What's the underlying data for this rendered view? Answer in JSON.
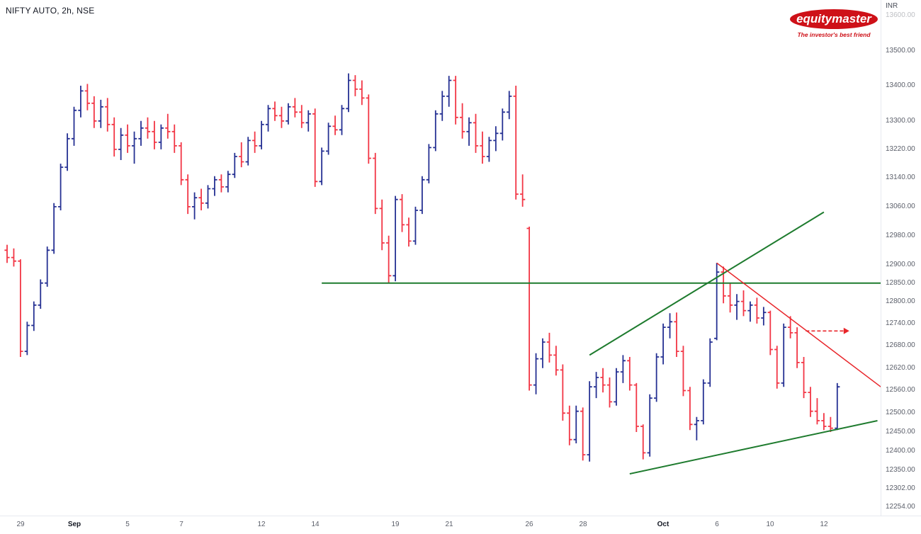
{
  "header": {
    "symbol_title": "NIFTY AUTO, 2h, NSE"
  },
  "logo": {
    "brand": "equitymaster",
    "tagline": "The investor's best friend"
  },
  "price_axis": {
    "currency": "INR"
  },
  "chart_data": {
    "type": "ohlc-bar",
    "symbol": "NIFTY AUTO",
    "interval": "2h",
    "exchange": "NSE",
    "currency": "INR",
    "grid": "off",
    "y_range": [
      12230,
      13645
    ],
    "y_axis": {
      "labels": [
        13600,
        13500,
        13400,
        13300,
        13220,
        13140,
        13060,
        12980,
        12900,
        12850,
        12800,
        12740,
        12680,
        12620,
        12560,
        12500,
        12450,
        12400,
        12350,
        12302,
        12254
      ],
      "faded": [
        13600
      ]
    },
    "x_axis": {
      "labels": [
        {
          "text": "29",
          "i": 2,
          "month": false
        },
        {
          "text": "Sep",
          "i": 10,
          "month": true
        },
        {
          "text": "5",
          "i": 18,
          "month": false
        },
        {
          "text": "7",
          "i": 26,
          "month": false
        },
        {
          "text": "12",
          "i": 38,
          "month": false
        },
        {
          "text": "14",
          "i": 46,
          "month": false
        },
        {
          "text": "19",
          "i": 58,
          "month": false
        },
        {
          "text": "21",
          "i": 66,
          "month": false
        },
        {
          "text": "26",
          "i": 78,
          "month": false
        },
        {
          "text": "28",
          "i": 86,
          "month": false
        },
        {
          "text": "Oct",
          "i": 98,
          "month": true
        },
        {
          "text": "6",
          "i": 106,
          "month": false
        },
        {
          "text": "10",
          "i": 114,
          "month": false
        },
        {
          "text": "12",
          "i": 122,
          "month": false
        }
      ]
    },
    "bars": [
      [
        12940,
        12955,
        12905,
        12920
      ],
      [
        12920,
        12945,
        12895,
        12910
      ],
      [
        12910,
        12915,
        12650,
        12665
      ],
      [
        12665,
        12745,
        12655,
        12735
      ],
      [
        12735,
        12800,
        12720,
        12790
      ],
      [
        12790,
        12860,
        12780,
        12850
      ],
      [
        12850,
        12950,
        12840,
        12940
      ],
      [
        12940,
        13070,
        12930,
        13060
      ],
      [
        13060,
        13180,
        13050,
        13170
      ],
      [
        13170,
        13265,
        13160,
        13250
      ],
      [
        13250,
        13340,
        13230,
        13330
      ],
      [
        13330,
        13400,
        13310,
        13385
      ],
      [
        13385,
        13405,
        13330,
        13350
      ],
      [
        13350,
        13370,
        13280,
        13300
      ],
      [
        13300,
        13360,
        13280,
        13340
      ],
      [
        13340,
        13365,
        13270,
        13290
      ],
      [
        13290,
        13310,
        13200,
        13220
      ],
      [
        13220,
        13280,
        13190,
        13260
      ],
      [
        13260,
        13290,
        13210,
        13230
      ],
      [
        13230,
        13270,
        13180,
        13250
      ],
      [
        13250,
        13300,
        13230,
        13280
      ],
      [
        13280,
        13310,
        13250,
        13270
      ],
      [
        13270,
        13300,
        13220,
        13240
      ],
      [
        13240,
        13290,
        13220,
        13280
      ],
      [
        13280,
        13320,
        13250,
        13270
      ],
      [
        13270,
        13290,
        13210,
        13230
      ],
      [
        13230,
        13240,
        13120,
        13135
      ],
      [
        13135,
        13150,
        13040,
        13060
      ],
      [
        13060,
        13100,
        13025,
        13085
      ],
      [
        13085,
        13110,
        13050,
        13070
      ],
      [
        13070,
        13120,
        13055,
        13110
      ],
      [
        13110,
        13145,
        13090,
        13135
      ],
      [
        13135,
        13150,
        13100,
        13115
      ],
      [
        13115,
        13160,
        13100,
        13150
      ],
      [
        13150,
        13210,
        13140,
        13200
      ],
      [
        13200,
        13240,
        13170,
        13185
      ],
      [
        13185,
        13255,
        13175,
        13245
      ],
      [
        13245,
        13270,
        13210,
        13230
      ],
      [
        13230,
        13300,
        13220,
        13290
      ],
      [
        13290,
        13345,
        13270,
        13335
      ],
      [
        13335,
        13355,
        13300,
        13315
      ],
      [
        13315,
        13340,
        13280,
        13300
      ],
      [
        13300,
        13350,
        13290,
        13340
      ],
      [
        13340,
        13365,
        13310,
        13325
      ],
      [
        13325,
        13345,
        13280,
        13295
      ],
      [
        13295,
        13330,
        13270,
        13320
      ],
      [
        13320,
        13335,
        13115,
        13130
      ],
      [
        13130,
        13225,
        13120,
        13215
      ],
      [
        13215,
        13295,
        13205,
        13285
      ],
      [
        13285,
        13315,
        13260,
        13275
      ],
      [
        13275,
        13345,
        13260,
        13335
      ],
      [
        13335,
        13435,
        13325,
        13415
      ],
      [
        13415,
        13430,
        13370,
        13390
      ],
      [
        13390,
        13415,
        13345,
        13365
      ],
      [
        13365,
        13375,
        13180,
        13195
      ],
      [
        13195,
        13210,
        13040,
        13055
      ],
      [
        13055,
        13080,
        12940,
        12960
      ],
      [
        12960,
        12980,
        12850,
        12870
      ],
      [
        12870,
        13090,
        12855,
        13080
      ],
      [
        13080,
        13095,
        12990,
        13010
      ],
      [
        13010,
        13030,
        12950,
        12965
      ],
      [
        12965,
        13060,
        12955,
        13050
      ],
      [
        13050,
        13145,
        13040,
        13135
      ],
      [
        13135,
        13235,
        13125,
        13225
      ],
      [
        13225,
        13330,
        13215,
        13320
      ],
      [
        13320,
        13385,
        13300,
        13370
      ],
      [
        13370,
        13428,
        13340,
        13415
      ],
      [
        13415,
        13428,
        13290,
        13310
      ],
      [
        13310,
        13350,
        13250,
        13270
      ],
      [
        13270,
        13310,
        13230,
        13295
      ],
      [
        13295,
        13320,
        13210,
        13230
      ],
      [
        13230,
        13270,
        13180,
        13200
      ],
      [
        13200,
        13255,
        13185,
        13245
      ],
      [
        13245,
        13285,
        13215,
        13265
      ],
      [
        13265,
        13335,
        13245,
        13325
      ],
      [
        13325,
        13385,
        13305,
        13370
      ],
      [
        13370,
        13400,
        13080,
        13095
      ],
      [
        13095,
        13150,
        13060,
        13080
      ],
      [
        13000,
        13005,
        12560,
        12575
      ],
      [
        12575,
        12660,
        12550,
        12645
      ],
      [
        12645,
        12700,
        12620,
        12690
      ],
      [
        12690,
        12715,
        12635,
        12655
      ],
      [
        12655,
        12680,
        12600,
        12615
      ],
      [
        12615,
        12630,
        12480,
        12500
      ],
      [
        12500,
        12520,
        12415,
        12430
      ],
      [
        12430,
        12520,
        12420,
        12505
      ],
      [
        12505,
        12515,
        12375,
        12390
      ],
      [
        12390,
        12585,
        12372,
        12570
      ],
      [
        12570,
        12610,
        12540,
        12595
      ],
      [
        12595,
        12620,
        12555,
        12575
      ],
      [
        12575,
        12595,
        12515,
        12530
      ],
      [
        12530,
        12620,
        12520,
        12610
      ],
      [
        12610,
        12655,
        12580,
        12640
      ],
      [
        12640,
        12650,
        12560,
        12575
      ],
      [
        12575,
        12580,
        12450,
        12465
      ],
      [
        12465,
        12470,
        12378,
        12395
      ],
      [
        12395,
        12550,
        12385,
        12540
      ],
      [
        12540,
        12660,
        12530,
        12650
      ],
      [
        12650,
        12740,
        12630,
        12730
      ],
      [
        12730,
        12768,
        12700,
        12745
      ],
      [
        12745,
        12770,
        12650,
        12665
      ],
      [
        12665,
        12680,
        12545,
        12560
      ],
      [
        12560,
        12570,
        12455,
        12470
      ],
      [
        12470,
        12490,
        12428,
        12480
      ],
      [
        12480,
        12590,
        12470,
        12580
      ],
      [
        12580,
        12700,
        12570,
        12690
      ],
      [
        12700,
        12905,
        12695,
        12880
      ],
      [
        12880,
        12895,
        12795,
        12815
      ],
      [
        12815,
        12850,
        12770,
        12790
      ],
      [
        12790,
        12820,
        12750,
        12800
      ],
      [
        12800,
        12830,
        12760,
        12775
      ],
      [
        12775,
        12800,
        12745,
        12790
      ],
      [
        12790,
        12810,
        12740,
        12755
      ],
      [
        12755,
        12785,
        12735,
        12770
      ],
      [
        12770,
        12775,
        12655,
        12670
      ],
      [
        12670,
        12680,
        12565,
        12580
      ],
      [
        12580,
        12740,
        12570,
        12730
      ],
      [
        12730,
        12760,
        12700,
        12715
      ],
      [
        12715,
        12730,
        12620,
        12635
      ],
      [
        12635,
        12650,
        12540,
        12555
      ],
      [
        12555,
        12570,
        12490,
        12505
      ],
      [
        12505,
        12540,
        12470,
        12480
      ],
      [
        12480,
        12500,
        12455,
        12465
      ],
      [
        12465,
        12490,
        12450,
        12460
      ],
      [
        12460,
        12580,
        12455,
        12570
      ]
    ],
    "annotations": {
      "support_line": {
        "kind": "horizontal",
        "price": 12850,
        "i1": 47,
        "i2": 130.5
      },
      "upper_trendline": {
        "kind": "trend",
        "i1": 87,
        "p1": 12655,
        "i2": 122,
        "p2": 13045
      },
      "lower_trendline": {
        "kind": "trend",
        "i1": 93,
        "p1": 12340,
        "i2": 130,
        "p2": 12480
      },
      "falling_trendline": {
        "kind": "trend",
        "i1": 106,
        "p1": 12905,
        "i2": 130.5,
        "p2": 12570
      },
      "breakout_arrow": {
        "kind": "dashed-arrow",
        "price": 12720,
        "i1": 119.3,
        "i2": 125.8
      }
    },
    "colors": {
      "up_bar": "#263193",
      "down_bar": "#f23645",
      "trend_green": "#1e7b2e",
      "trend_red": "#e8252a",
      "axis_text": "#5a5e69",
      "background": "#ffffff",
      "brand_red": "#ce1118"
    }
  }
}
